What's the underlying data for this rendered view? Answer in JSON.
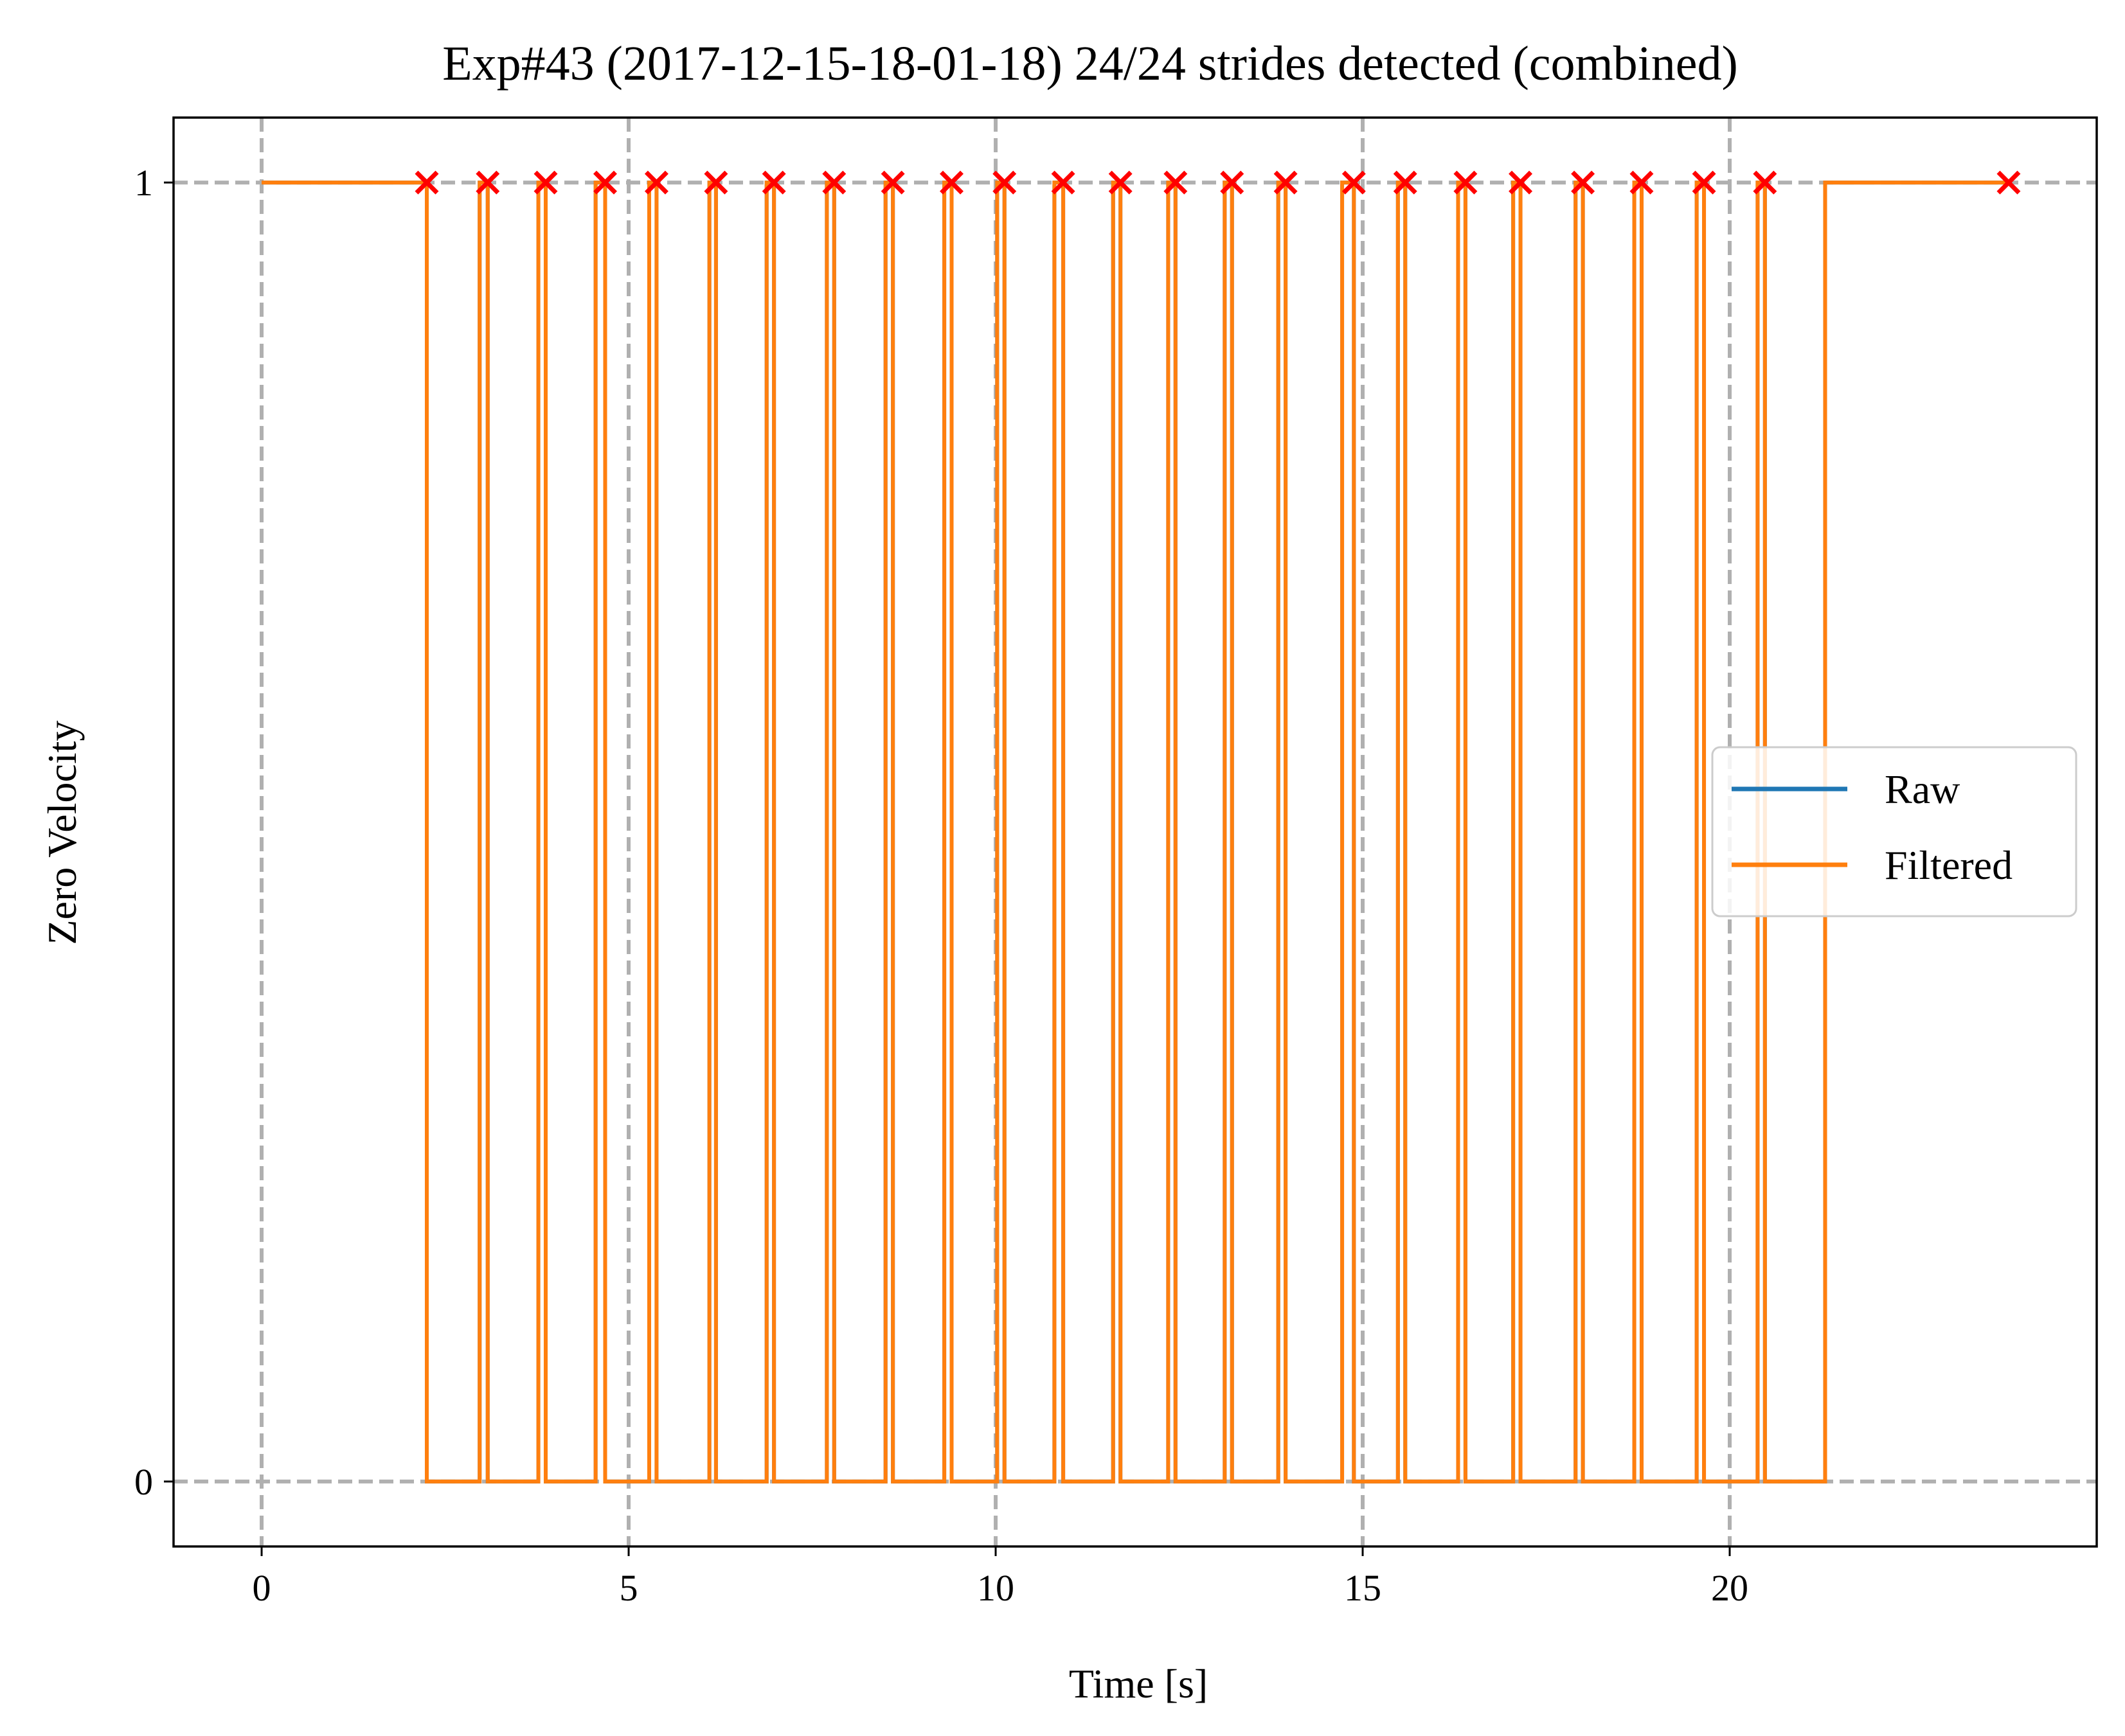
{
  "chart_data": {
    "type": "line",
    "title": "Exp#43 (2017-12-15-18-01-18) 24/24 strides detected (combined)",
    "xlabel": "Time [s]",
    "ylabel": "Zero Velocity",
    "xlim": [
      -1.2,
      25.0
    ],
    "ylim": [
      -0.05,
      1.05
    ],
    "xticks": [
      0,
      5,
      10,
      15,
      20
    ],
    "yticks": [
      0,
      1
    ],
    "grid": true,
    "grid_style": "dashed",
    "legend_position": "center-right",
    "series": [
      {
        "name": "Raw",
        "color": "#1f77b4",
        "style": "step",
        "initial": 1,
        "final": 1,
        "segments_low": [
          [
            2.25,
            2.97
          ],
          [
            3.08,
            3.77
          ],
          [
            3.87,
            4.55
          ],
          [
            4.68,
            5.28
          ],
          [
            5.38,
            6.1
          ],
          [
            6.19,
            6.88
          ],
          [
            6.98,
            7.7
          ],
          [
            7.8,
            8.5
          ],
          [
            8.6,
            9.3
          ],
          [
            9.4,
            10.02
          ],
          [
            10.12,
            10.8
          ],
          [
            10.92,
            11.6
          ],
          [
            11.7,
            12.35
          ],
          [
            12.45,
            13.12
          ],
          [
            13.22,
            13.85
          ],
          [
            13.95,
            14.72
          ],
          [
            14.88,
            15.48
          ],
          [
            15.58,
            16.3
          ],
          [
            16.4,
            17.05
          ],
          [
            17.15,
            17.9
          ],
          [
            18.0,
            18.7
          ],
          [
            18.8,
            19.55
          ],
          [
            19.65,
            20.38
          ],
          [
            20.48,
            21.3
          ]
        ]
      },
      {
        "name": "Filtered",
        "color": "#ff7f0e",
        "style": "step",
        "initial": 1,
        "final": 1,
        "segments_low": [
          [
            2.25,
            2.97
          ],
          [
            3.08,
            3.77
          ],
          [
            3.87,
            4.55
          ],
          [
            4.68,
            5.28
          ],
          [
            5.38,
            6.1
          ],
          [
            6.19,
            6.88
          ],
          [
            6.98,
            7.7
          ],
          [
            7.8,
            8.5
          ],
          [
            8.6,
            9.3
          ],
          [
            9.4,
            10.02
          ],
          [
            10.12,
            10.8
          ],
          [
            10.92,
            11.6
          ],
          [
            11.7,
            12.35
          ],
          [
            12.45,
            13.12
          ],
          [
            13.22,
            13.85
          ],
          [
            13.95,
            14.72
          ],
          [
            14.88,
            15.48
          ],
          [
            15.58,
            16.3
          ],
          [
            16.4,
            17.05
          ],
          [
            17.15,
            17.9
          ],
          [
            18.0,
            18.7
          ],
          [
            18.8,
            19.55
          ],
          [
            19.65,
            20.38
          ],
          [
            20.48,
            21.3
          ]
        ]
      }
    ],
    "markers": {
      "shape": "x",
      "color": "#ff0000",
      "y": 1,
      "x": [
        2.25,
        3.08,
        3.87,
        4.68,
        5.38,
        6.19,
        6.98,
        7.8,
        8.6,
        9.4,
        10.12,
        10.92,
        11.7,
        12.45,
        13.22,
        13.95,
        14.88,
        15.58,
        16.4,
        17.15,
        18.0,
        18.8,
        19.65,
        20.48,
        23.8
      ]
    }
  }
}
